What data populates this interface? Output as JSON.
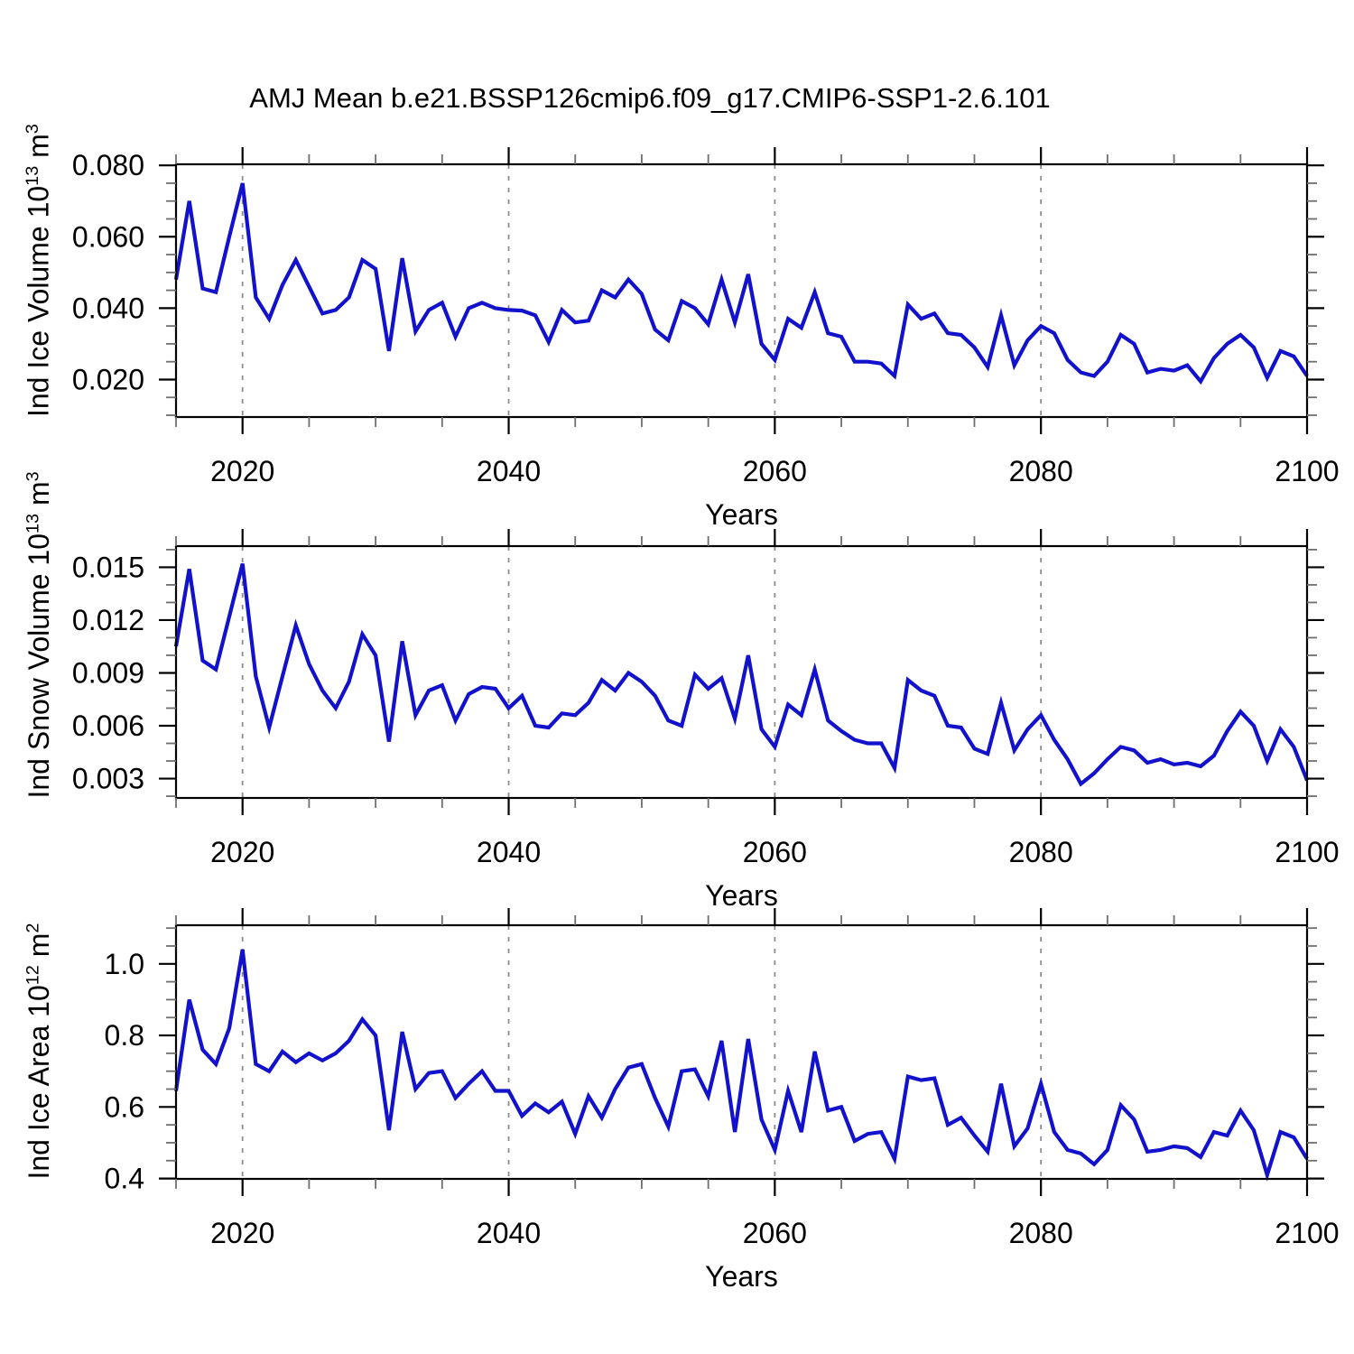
{
  "page": {
    "title": "AMJ Mean b.e21.BSSP126cmip6.f09_g17.CMIP6-SSP1-2.6.101",
    "background": "#ffffff"
  },
  "style": {
    "line_color": "#1212cc",
    "axis_color": "#000000",
    "minor_tick_color": "#6f6f6f",
    "gridline_color": "#8c8c8c",
    "text_color": "#000000"
  },
  "x_axis": {
    "label": "Years",
    "major_ticks": [
      2020,
      2040,
      2060,
      2080,
      2100
    ],
    "major_tick_labels": [
      "2020",
      "2040",
      "2060",
      "2080",
      "2100"
    ],
    "minor_step": 5,
    "range": [
      2015,
      2100
    ],
    "dashed_gridlines_at": [
      2020,
      2040,
      2060,
      2080
    ]
  },
  "years": [
    2015,
    2016,
    2017,
    2018,
    2019,
    2020,
    2021,
    2022,
    2023,
    2024,
    2025,
    2026,
    2027,
    2028,
    2029,
    2030,
    2031,
    2032,
    2033,
    2034,
    2035,
    2036,
    2037,
    2038,
    2039,
    2040,
    2041,
    2042,
    2043,
    2044,
    2045,
    2046,
    2047,
    2048,
    2049,
    2050,
    2051,
    2052,
    2053,
    2054,
    2055,
    2056,
    2057,
    2058,
    2059,
    2060,
    2061,
    2062,
    2063,
    2064,
    2065,
    2066,
    2067,
    2068,
    2069,
    2070,
    2071,
    2072,
    2073,
    2074,
    2075,
    2076,
    2077,
    2078,
    2079,
    2080,
    2081,
    2082,
    2083,
    2084,
    2085,
    2086,
    2087,
    2088,
    2089,
    2090,
    2091,
    2092,
    2093,
    2094,
    2095,
    2096,
    2097,
    2098,
    2099,
    2100
  ],
  "chart_data": [
    {
      "type": "line",
      "name": "ind-ice-volume",
      "ylabel_plain": "Ind Ice Volume 10^13 m^3",
      "ylabel_parts": [
        [
          "text",
          "Ind Ice Volume 10"
        ],
        [
          "sup",
          "13"
        ],
        [
          "text",
          " m"
        ],
        [
          "sup",
          "3"
        ]
      ],
      "xlabel": "Years",
      "xlim": [
        2015,
        2100
      ],
      "ylim": [
        0.0095,
        0.0803
      ],
      "yticks": [
        0.02,
        0.04,
        0.06,
        0.08
      ],
      "ytick_labels": [
        "0.020",
        "0.040",
        "0.060",
        "0.080"
      ],
      "y_minor_step": 0.005,
      "grid": false,
      "legend": "none",
      "values": [
        0.048,
        0.07,
        0.0455,
        0.0445,
        0.06,
        0.075,
        0.043,
        0.037,
        0.0465,
        0.0535,
        0.046,
        0.0385,
        0.0395,
        0.043,
        0.0535,
        0.051,
        0.028,
        0.054,
        0.0335,
        0.0395,
        0.0415,
        0.032,
        0.04,
        0.0415,
        0.04,
        0.0395,
        0.0393,
        0.038,
        0.0305,
        0.0395,
        0.036,
        0.0365,
        0.045,
        0.043,
        0.048,
        0.044,
        0.034,
        0.031,
        0.042,
        0.04,
        0.0355,
        0.048,
        0.036,
        0.0495,
        0.03,
        0.0255,
        0.037,
        0.0345,
        0.0445,
        0.033,
        0.032,
        0.025,
        0.025,
        0.0245,
        0.021,
        0.041,
        0.037,
        0.0385,
        0.033,
        0.0325,
        0.029,
        0.0235,
        0.038,
        0.024,
        0.031,
        0.035,
        0.033,
        0.0255,
        0.022,
        0.021,
        0.025,
        0.0325,
        0.03,
        0.022,
        0.023,
        0.0225,
        0.024,
        0.0195,
        0.026,
        0.03,
        0.0325,
        0.029,
        0.0205,
        0.028,
        0.0265,
        0.021
      ]
    },
    {
      "type": "line",
      "name": "ind-snow-volume",
      "ylabel_plain": "Ind Snow Volume 10^13 m^3",
      "ylabel_parts": [
        [
          "text",
          "Ind Snow Volume 10"
        ],
        [
          "sup",
          "13"
        ],
        [
          "text",
          " m"
        ],
        [
          "sup",
          "3"
        ]
      ],
      "xlabel": "Years",
      "xlim": [
        2015,
        2100
      ],
      "ylim": [
        0.0019,
        0.0162
      ],
      "yticks": [
        0.003,
        0.006,
        0.009,
        0.012,
        0.015
      ],
      "ytick_labels": [
        "0.003",
        "0.006",
        "0.009",
        "0.012",
        "0.015"
      ],
      "y_minor_step": 0.001,
      "grid": false,
      "legend": "none",
      "values": [
        0.0105,
        0.0149,
        0.0097,
        0.0092,
        0.0122,
        0.0152,
        0.0088,
        0.0059,
        0.0088,
        0.0117,
        0.0095,
        0.008,
        0.007,
        0.0085,
        0.0112,
        0.01,
        0.0051,
        0.0108,
        0.0066,
        0.008,
        0.0083,
        0.0063,
        0.0078,
        0.0082,
        0.0081,
        0.007,
        0.0077,
        0.006,
        0.0059,
        0.0067,
        0.0066,
        0.0073,
        0.0086,
        0.008,
        0.009,
        0.0085,
        0.0077,
        0.0063,
        0.006,
        0.0089,
        0.0081,
        0.0087,
        0.0064,
        0.01,
        0.0058,
        0.0048,
        0.0072,
        0.0066,
        0.0092,
        0.0063,
        0.0057,
        0.0052,
        0.005,
        0.005,
        0.0036,
        0.0086,
        0.008,
        0.0077,
        0.006,
        0.0059,
        0.0047,
        0.0044,
        0.0073,
        0.0046,
        0.0058,
        0.0066,
        0.0052,
        0.0041,
        0.0027,
        0.0033,
        0.0041,
        0.0048,
        0.0046,
        0.0039,
        0.0041,
        0.0038,
        0.0039,
        0.0037,
        0.0043,
        0.0057,
        0.0068,
        0.006,
        0.004,
        0.0058,
        0.0048,
        0.0029
      ]
    },
    {
      "type": "line",
      "name": "ind-ice-area",
      "ylabel_plain": "Ind Ice Area 10^12 m^2",
      "ylabel_parts": [
        [
          "text",
          "Ind Ice Area 10"
        ],
        [
          "sup",
          "12"
        ],
        [
          "text",
          " m"
        ],
        [
          "sup",
          "2"
        ]
      ],
      "xlabel": "Years",
      "xlim": [
        2015,
        2100
      ],
      "ylim": [
        0.399,
        1.108
      ],
      "yticks": [
        0.4,
        0.6,
        0.8,
        1.0
      ],
      "ytick_labels": [
        "0.4",
        "0.6",
        "0.8",
        "1.0"
      ],
      "y_minor_step": 0.05,
      "grid": false,
      "legend": "none",
      "values": [
        0.645,
        0.9,
        0.76,
        0.72,
        0.82,
        1.04,
        0.72,
        0.7,
        0.755,
        0.725,
        0.75,
        0.73,
        0.75,
        0.785,
        0.845,
        0.8,
        0.535,
        0.81,
        0.65,
        0.695,
        0.7,
        0.625,
        0.665,
        0.7,
        0.645,
        0.645,
        0.575,
        0.61,
        0.585,
        0.615,
        0.525,
        0.63,
        0.57,
        0.65,
        0.71,
        0.72,
        0.625,
        0.545,
        0.7,
        0.705,
        0.63,
        0.785,
        0.53,
        0.79,
        0.565,
        0.48,
        0.645,
        0.53,
        0.755,
        0.59,
        0.6,
        0.505,
        0.525,
        0.53,
        0.455,
        0.685,
        0.675,
        0.68,
        0.55,
        0.57,
        0.52,
        0.475,
        0.665,
        0.49,
        0.54,
        0.665,
        0.53,
        0.48,
        0.47,
        0.44,
        0.48,
        0.605,
        0.565,
        0.475,
        0.48,
        0.49,
        0.485,
        0.46,
        0.53,
        0.52,
        0.59,
        0.535,
        0.41,
        0.53,
        0.515,
        0.455
      ]
    }
  ]
}
